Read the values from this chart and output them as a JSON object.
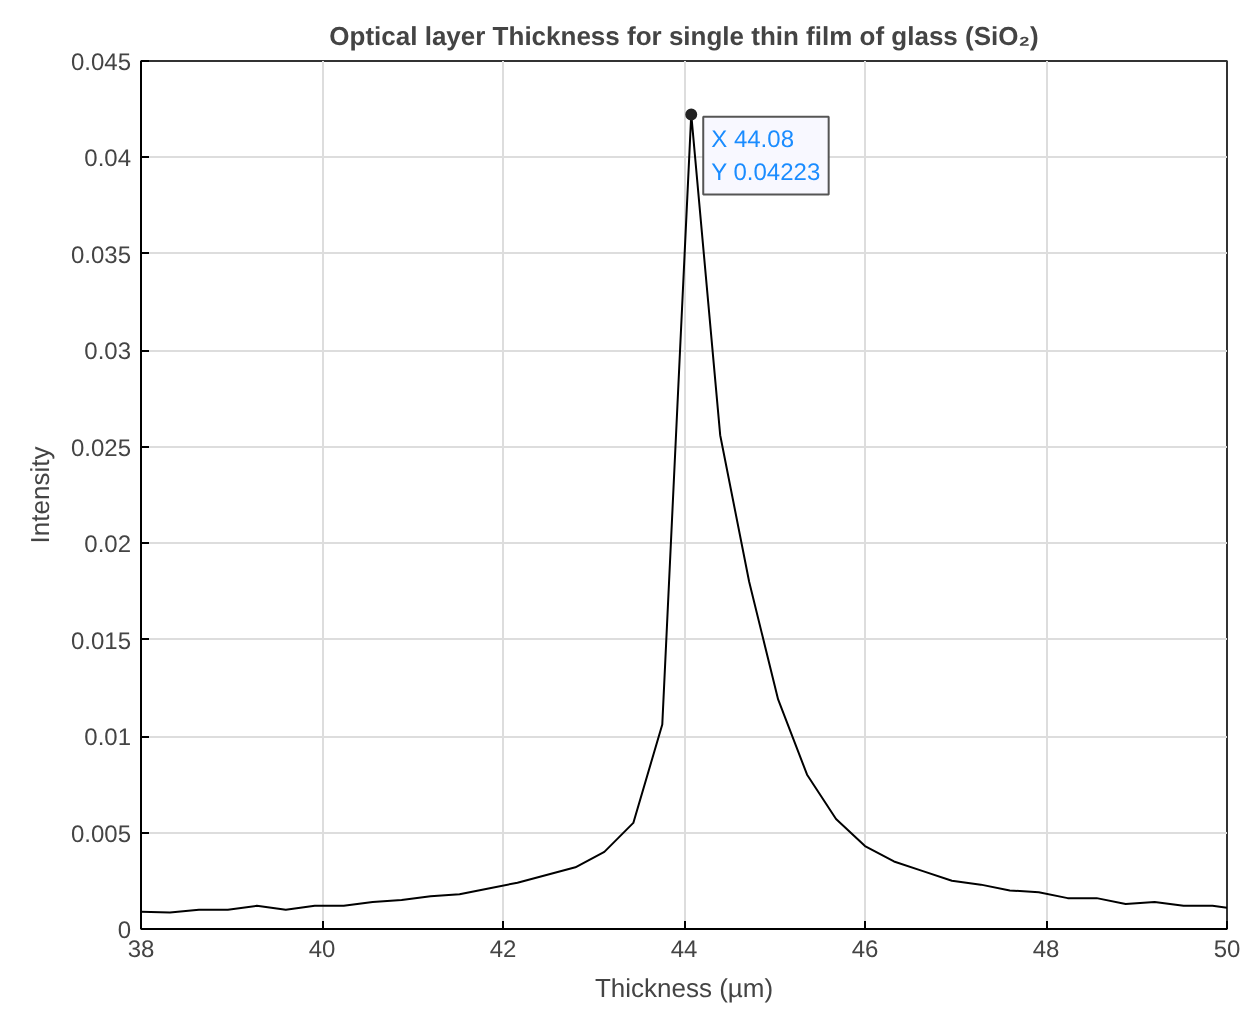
{
  "chart_data": {
    "type": "line",
    "title": "Optical layer Thickness for single thin film of glass (SiO₂)",
    "xlabel": "Thickness (µm)",
    "ylabel": "Intensity",
    "x": [
      38,
      38.32,
      38.64,
      38.96,
      39.28,
      39.6,
      39.92,
      40.24,
      40.56,
      40.88,
      41.2,
      41.52,
      41.84,
      42.16,
      42.48,
      42.8,
      43.12,
      43.44,
      43.76,
      44.08,
      44.4,
      44.72,
      45.04,
      45.36,
      45.68,
      46.0,
      46.32,
      46.64,
      46.96,
      47.28,
      47.6,
      47.92,
      48.24,
      48.56,
      48.88,
      49.2,
      49.52,
      49.84,
      50
    ],
    "series": [
      {
        "color": "#000000",
        "values": [
          0.0009,
          0.00085,
          0.001,
          0.001,
          0.0012,
          0.001,
          0.0012,
          0.0012,
          0.0014,
          0.0015,
          0.0017,
          0.0018,
          0.0021,
          0.0024,
          0.0028,
          0.0032,
          0.004,
          0.0055,
          0.0106,
          0.04223,
          0.0256,
          0.018,
          0.0119,
          0.008,
          0.0057,
          0.0043,
          0.0035,
          0.003,
          0.0025,
          0.0023,
          0.002,
          0.0019,
          0.0016,
          0.0016,
          0.0013,
          0.0014,
          0.0012,
          0.0012,
          0.0011
        ]
      }
    ],
    "xlim": [
      38,
      50
    ],
    "xticks": [
      38,
      40,
      42,
      44,
      46,
      48,
      50
    ],
    "ylim": [
      0,
      0.045
    ],
    "yticks": [
      0,
      0.005,
      0.01,
      0.015,
      0.02,
      0.025,
      0.03,
      0.035,
      0.04,
      0.045
    ],
    "grid": true,
    "line_style": "solid",
    "annotations": [
      {
        "text": "X 44.08\nY 0.04223",
        "x": 44.08,
        "y": 0.04223
      }
    ]
  }
}
